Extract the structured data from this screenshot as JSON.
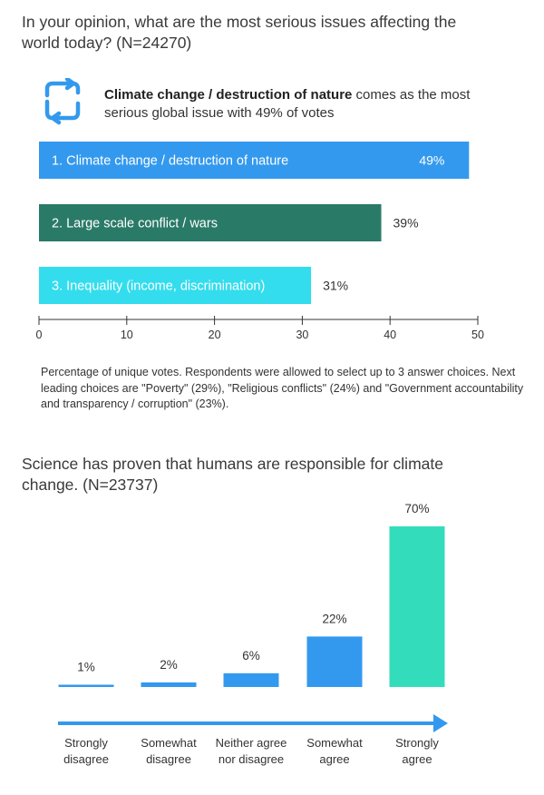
{
  "question1": {
    "title": "In your opinion, what are the most serious issues affecting the world today? (N=24270)",
    "headline_bold": "Climate change / destruction of nature",
    "headline_rest": " comes as the most serious global issue with 49% of votes",
    "icon": "cycle-arrows-icon",
    "note": "Percentage of unique votes. Respondents were allowed to select up to 3 answer choices. Next leading choices are \"Poverty\" (29%), \"Religious conflicts\" (24%) and \"Government accountability and transparency / corruption\" (23%)."
  },
  "question2": {
    "title": "Science has proven that humans are responsible for climate change. (N=23737)"
  },
  "colors": {
    "bar_blue": "#3399ee",
    "bar_green": "#2a7a68",
    "bar_cyan": "#33ddee",
    "bar_teal": "#33ddbb",
    "arrow": "#3399ee",
    "axis": "#333333"
  },
  "chart_data": [
    {
      "type": "bar",
      "orientation": "horizontal",
      "categories": [
        "1. Climate change / destruction of nature",
        "2. Large scale conflict / wars",
        "3. Inequality (income, discrimination)"
      ],
      "values": [
        49,
        39,
        31
      ],
      "value_labels": [
        "49%",
        "39%",
        "31%"
      ],
      "bar_colors": [
        "#3399ee",
        "#2a7a68",
        "#33ddee"
      ],
      "xlim": [
        0,
        50
      ],
      "xticks": [
        0,
        10,
        20,
        30,
        40,
        50
      ],
      "grid": false
    },
    {
      "type": "bar",
      "orientation": "vertical",
      "categories": [
        [
          "Strongly",
          "disagree"
        ],
        [
          "Somewhat",
          "disagree"
        ],
        [
          "Neither agree",
          "nor disagree"
        ],
        [
          "Somewhat",
          "agree"
        ],
        [
          "Strongly",
          "agree"
        ]
      ],
      "values": [
        1,
        2,
        6,
        22,
        70
      ],
      "value_labels": [
        "1%",
        "2%",
        "6%",
        "22%",
        "70%"
      ],
      "bar_colors": [
        "#3399ee",
        "#3399ee",
        "#3399ee",
        "#3399ee",
        "#33ddbb"
      ],
      "ylim": [
        0,
        70
      ],
      "grid": false
    }
  ]
}
